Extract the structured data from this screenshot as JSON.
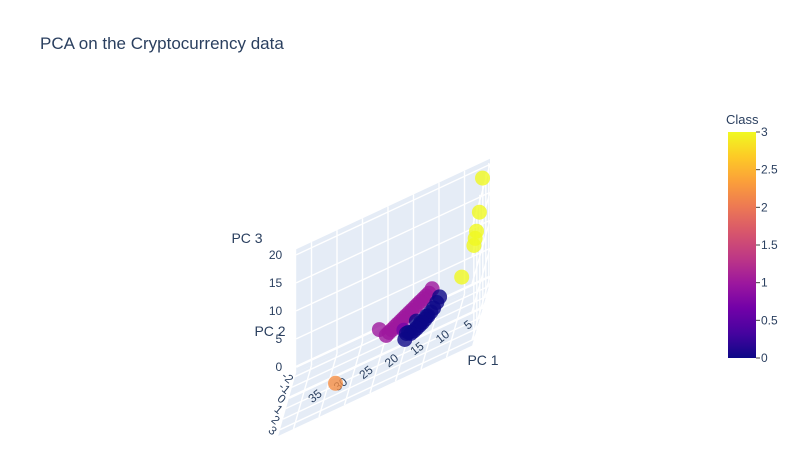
{
  "chart_data": {
    "type": "scatter3d",
    "title": "PCA on the Cryptocurrency data",
    "axes": {
      "x": {
        "label": "PC 1",
        "ticks": [
          "5",
          "10",
          "15",
          "20",
          "25",
          "30",
          "35"
        ],
        "tick_values": [
          5,
          10,
          15,
          20,
          25,
          30,
          35
        ],
        "range": [
          0,
          38
        ]
      },
      "y": {
        "label": "PC 2",
        "ticks": [
          "-2",
          "-1",
          "0",
          "1",
          "2",
          "3"
        ],
        "tick_values": [
          -2,
          -1,
          0,
          1,
          2,
          3
        ],
        "range": [
          -2.4,
          3.6
        ]
      },
      "z": {
        "label": "PC 3",
        "ticks": [
          "0",
          "5",
          "10",
          "15",
          "20"
        ],
        "tick_values": [
          0,
          5,
          10,
          15,
          20
        ],
        "range": [
          -1,
          21
        ]
      }
    },
    "colorbar": {
      "title": "Class",
      "ticks": [
        "0",
        "0.5",
        "1",
        "1.5",
        "2",
        "2.5",
        "3"
      ],
      "tick_values": [
        0,
        0.5,
        1,
        1.5,
        2,
        2.5,
        3
      ],
      "range": [
        0,
        3
      ]
    },
    "colorscale": "plasma",
    "points": [
      {
        "x": 1.0,
        "y": -1.6,
        "z": 19.5,
        "class": 3
      },
      {
        "x": 1.5,
        "y": -1.4,
        "z": 14.0,
        "class": 3
      },
      {
        "x": 2.0,
        "y": -1.3,
        "z": 11.0,
        "class": 3
      },
      {
        "x": 2.2,
        "y": -1.2,
        "z": 10.0,
        "class": 3
      },
      {
        "x": 2.4,
        "y": -1.1,
        "z": 9.0,
        "class": 3
      },
      {
        "x": 4.5,
        "y": -0.6,
        "z": 5.2,
        "class": 3
      },
      {
        "x": 9.5,
        "y": -0.8,
        "z": 2.4,
        "class": 0
      },
      {
        "x": 10.0,
        "y": -0.6,
        "z": 2.0,
        "class": 0
      },
      {
        "x": 10.5,
        "y": -0.5,
        "z": 1.7,
        "class": 0
      },
      {
        "x": 11.0,
        "y": -0.4,
        "z": 1.4,
        "class": 0
      },
      {
        "x": 11.5,
        "y": -0.3,
        "z": 1.2,
        "class": 0
      },
      {
        "x": 12.0,
        "y": -0.2,
        "z": 1.0,
        "class": 0
      },
      {
        "x": 12.5,
        "y": -0.1,
        "z": 0.9,
        "class": 0
      },
      {
        "x": 13.0,
        "y": 0.0,
        "z": 0.8,
        "class": 0
      },
      {
        "x": 13.5,
        "y": 0.1,
        "z": 0.7,
        "class": 0
      },
      {
        "x": 14.0,
        "y": 0.2,
        "z": 0.7,
        "class": 0
      },
      {
        "x": 14.5,
        "y": 0.1,
        "z": 0.9,
        "class": 0
      },
      {
        "x": 11.2,
        "y": -0.2,
        "z": 1.8,
        "class": 0
      },
      {
        "x": 12.2,
        "y": 0.0,
        "z": 1.5,
        "class": 0
      },
      {
        "x": 13.2,
        "y": -0.3,
        "z": 1.6,
        "class": 0
      },
      {
        "x": 9.0,
        "y": -0.9,
        "z": 3.0,
        "class": 0
      },
      {
        "x": 14.8,
        "y": 0.3,
        "z": 1.2,
        "class": 0
      },
      {
        "x": 15.0,
        "y": 0.5,
        "z": 0.6,
        "class": 0
      },
      {
        "x": 15.3,
        "y": 0.3,
        "z": 2.0,
        "class": 0.7
      },
      {
        "x": 11.0,
        "y": -1.8,
        "z": 3.6,
        "class": 1
      },
      {
        "x": 11.5,
        "y": -1.6,
        "z": 3.4,
        "class": 1
      },
      {
        "x": 12.0,
        "y": -1.5,
        "z": 3.3,
        "class": 1
      },
      {
        "x": 12.5,
        "y": -1.4,
        "z": 3.2,
        "class": 1
      },
      {
        "x": 13.0,
        "y": -1.3,
        "z": 3.1,
        "class": 1
      },
      {
        "x": 13.5,
        "y": -1.2,
        "z": 3.0,
        "class": 1
      },
      {
        "x": 14.0,
        "y": -1.1,
        "z": 2.9,
        "class": 1
      },
      {
        "x": 14.5,
        "y": -1.0,
        "z": 2.8,
        "class": 1
      },
      {
        "x": 15.0,
        "y": -0.9,
        "z": 2.7,
        "class": 1
      },
      {
        "x": 15.5,
        "y": -0.8,
        "z": 2.6,
        "class": 1
      },
      {
        "x": 16.0,
        "y": -0.7,
        "z": 2.5,
        "class": 1
      },
      {
        "x": 16.5,
        "y": -0.6,
        "z": 2.4,
        "class": 1
      },
      {
        "x": 17.0,
        "y": -0.5,
        "z": 2.3,
        "class": 1
      },
      {
        "x": 17.5,
        "y": -0.4,
        "z": 2.2,
        "class": 1
      },
      {
        "x": 18.0,
        "y": -0.3,
        "z": 2.1,
        "class": 1
      },
      {
        "x": 18.5,
        "y": -0.2,
        "z": 2.0,
        "class": 1
      },
      {
        "x": 19.0,
        "y": -0.1,
        "z": 1.9,
        "class": 1
      },
      {
        "x": 20.5,
        "y": -0.4,
        "z": 3.0,
        "class": 1
      },
      {
        "x": 28.0,
        "y": 1.5,
        "z": 0.2,
        "class": 2.2
      }
    ]
  }
}
